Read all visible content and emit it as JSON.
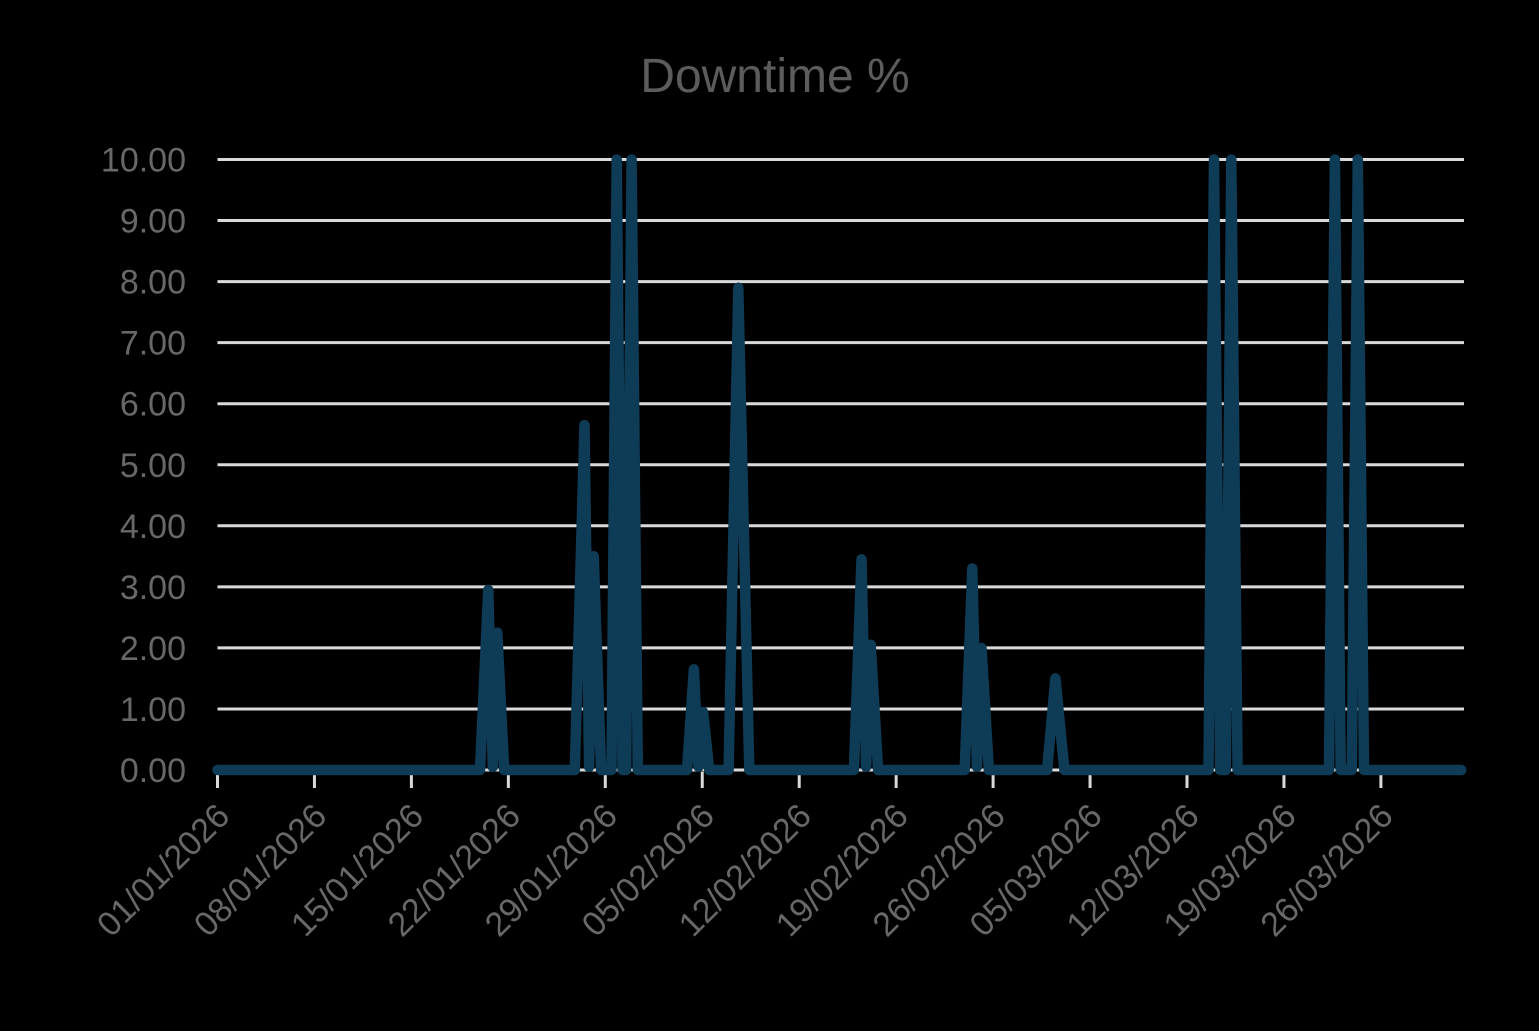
{
  "chart_data": {
    "type": "line",
    "title": "Downtime %",
    "xlabel": "",
    "ylabel": "",
    "x_unit": "days since 01/01/2026",
    "xlim_days": [
      0,
      90
    ],
    "ylim": [
      0,
      10
    ],
    "grid": "horizontal",
    "legend": "none",
    "y_tick_labels": [
      "0.00",
      "1.00",
      "2.00",
      "3.00",
      "4.00",
      "5.00",
      "6.00",
      "7.00",
      "8.00",
      "9.00",
      "10.00"
    ],
    "x_tick_labels": [
      "01/01/2026",
      "08/01/2026",
      "15/01/2026",
      "22/01/2026",
      "29/01/2026",
      "05/02/2026",
      "12/02/2026",
      "19/02/2026",
      "26/02/2026",
      "05/03/2026",
      "12/03/2026",
      "19/03/2026",
      "26/03/2026"
    ],
    "x_tick_day_offsets": [
      0,
      7,
      14,
      21,
      28,
      35,
      42,
      49,
      56,
      63,
      70,
      77,
      84
    ],
    "series": [
      {
        "name": "Downtime %",
        "baseline_value": 0,
        "events_peaks": [
          {
            "date": "21/01/2026",
            "value": 2.95
          },
          {
            "date": "27/01/2026",
            "value": 5.65
          },
          {
            "date": "30/01/2026",
            "value": 10.0
          },
          {
            "date": "31/01/2026",
            "value": 10.0
          },
          {
            "date": "04/02/2026",
            "value": 1.65
          },
          {
            "date": "07/02/2026",
            "value": 7.9
          },
          {
            "date": "16/02/2026",
            "value": 3.45
          },
          {
            "date": "24/02/2026",
            "value": 3.3
          },
          {
            "date": "02/03/2026",
            "value": 1.5
          },
          {
            "date": "14/03/2026",
            "value": 10.0
          },
          {
            "date": "15/03/2026",
            "value": 10.0
          },
          {
            "date": "23/03/2026",
            "value": 10.0
          },
          {
            "date": "24/03/2026",
            "value": 10.0
          }
        ],
        "points_day_value": [
          [
            0,
            0
          ],
          [
            18.95,
            0
          ],
          [
            19.55,
            2.95
          ],
          [
            19.88,
            0.05
          ],
          [
            20.2,
            2.25
          ],
          [
            20.7,
            0
          ],
          [
            25.8,
            0
          ],
          [
            26.5,
            5.65
          ],
          [
            26.83,
            0.05
          ],
          [
            27.16,
            3.5
          ],
          [
            27.7,
            0
          ],
          [
            28.45,
            0
          ],
          [
            28.82,
            10
          ],
          [
            29.25,
            0
          ],
          [
            29.5,
            0
          ],
          [
            29.9,
            10
          ],
          [
            30.35,
            0
          ],
          [
            33.9,
            0
          ],
          [
            34.4,
            1.65
          ],
          [
            34.73,
            0.05
          ],
          [
            35.06,
            0.95
          ],
          [
            35.5,
            0
          ],
          [
            36.9,
            0
          ],
          [
            37.6,
            7.9
          ],
          [
            38.4,
            0
          ],
          [
            45.95,
            0
          ],
          [
            46.5,
            3.45
          ],
          [
            46.83,
            0.05
          ],
          [
            47.16,
            2.05
          ],
          [
            47.7,
            0
          ],
          [
            53.95,
            0
          ],
          [
            54.5,
            3.3
          ],
          [
            54.83,
            0.05
          ],
          [
            55.16,
            2.0
          ],
          [
            55.7,
            0
          ],
          [
            59.9,
            0
          ],
          [
            60.5,
            1.5
          ],
          [
            61.15,
            0
          ],
          [
            71.55,
            0
          ],
          [
            71.95,
            10
          ],
          [
            72.4,
            0
          ],
          [
            72.8,
            0
          ],
          [
            73.2,
            10
          ],
          [
            73.65,
            0
          ],
          [
            80.25,
            0
          ],
          [
            80.68,
            10
          ],
          [
            81.1,
            0
          ],
          [
            81.9,
            0
          ],
          [
            82.33,
            10
          ],
          [
            82.78,
            0
          ],
          [
            89.8,
            0
          ]
        ]
      }
    ],
    "colors": {
      "background": "#000000",
      "line": "#0e3b56",
      "gridline": "#d9d9d9",
      "tick": "#d9d9d9",
      "axis_label_text": "#686868",
      "title_text": "#5c5c5c"
    }
  }
}
